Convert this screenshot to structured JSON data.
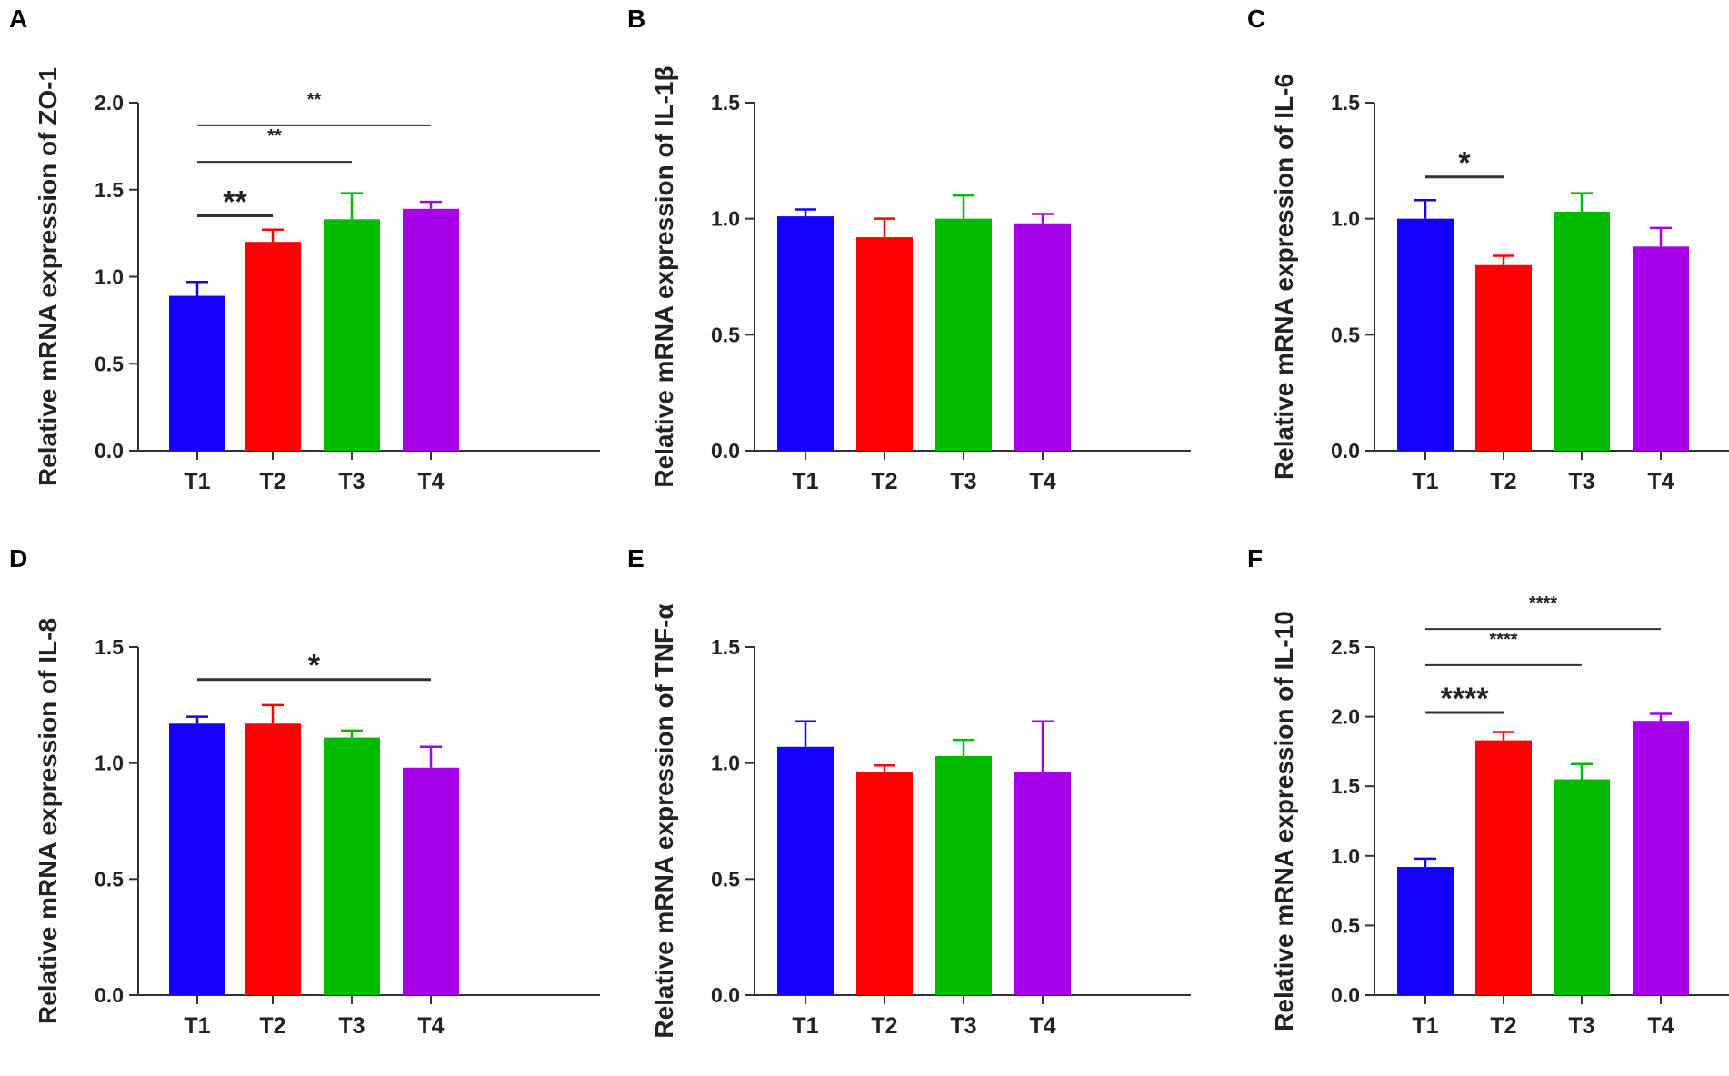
{
  "colors": {
    "T1": "#1400ff",
    "T2": "#ff0000",
    "T3": "#00bb00",
    "T4": "#a600e6",
    "axis": "#333333"
  },
  "chart_data": [
    {
      "panel": "A",
      "type": "bar",
      "ylabel": "Relative mRNA expression of ZO-1",
      "categories": [
        "T1",
        "T2",
        "T3",
        "T4"
      ],
      "values": [
        0.89,
        1.2,
        1.33,
        1.39
      ],
      "errors": [
        0.08,
        0.07,
        0.15,
        0.04
      ],
      "ylim": [
        0,
        2.0
      ],
      "yticks": [
        0.0,
        0.5,
        1.0,
        1.5,
        2.0
      ],
      "ytick_labels": [
        "0.0",
        "0.5",
        "1.0",
        "1.5",
        "2.0"
      ],
      "significance": [
        {
          "from": "T1",
          "to": "T2",
          "text": "**",
          "y": 1.35,
          "big": true
        },
        {
          "from": "T1",
          "to": "T3",
          "text": "**",
          "y": 1.66,
          "big": false
        },
        {
          "from": "T1",
          "to": "T4",
          "text": "**",
          "y": 1.87,
          "big": false
        }
      ]
    },
    {
      "panel": "B",
      "type": "bar",
      "ylabel": "Relative mRNA expression of IL-1β",
      "categories": [
        "T1",
        "T2",
        "T3",
        "T4"
      ],
      "values": [
        1.01,
        0.92,
        1.0,
        0.98
      ],
      "errors": [
        0.03,
        0.08,
        0.1,
        0.04
      ],
      "ylim": [
        0,
        1.5
      ],
      "yticks": [
        0.0,
        0.5,
        1.0,
        1.5
      ],
      "ytick_labels": [
        "0.0",
        "0.5",
        "1.0",
        "1.5"
      ],
      "significance": []
    },
    {
      "panel": "C",
      "type": "bar",
      "ylabel": "Relative mRNA expression of IL-6",
      "categories": [
        "T1",
        "T2",
        "T3",
        "T4"
      ],
      "values": [
        1.0,
        0.8,
        1.03,
        0.88
      ],
      "errors": [
        0.08,
        0.04,
        0.08,
        0.08
      ],
      "ylim": [
        0,
        1.5
      ],
      "yticks": [
        0.0,
        0.5,
        1.0,
        1.5
      ],
      "ytick_labels": [
        "0.0",
        "0.5",
        "1.0",
        "1.5"
      ],
      "significance": [
        {
          "from": "T1",
          "to": "T2",
          "text": "*",
          "y": 1.18,
          "big": true
        }
      ]
    },
    {
      "panel": "D",
      "type": "bar",
      "ylabel": "Relative mRNA expression of IL-8",
      "categories": [
        "T1",
        "T2",
        "T3",
        "T4"
      ],
      "values": [
        1.17,
        1.17,
        1.11,
        0.98
      ],
      "errors": [
        0.03,
        0.08,
        0.03,
        0.09
      ],
      "ylim": [
        0,
        1.5
      ],
      "yticks": [
        0.0,
        0.5,
        1.0,
        1.5
      ],
      "ytick_labels": [
        "0.0",
        "0.5",
        "1.0",
        "1.5"
      ],
      "significance": [
        {
          "from": "T1",
          "to": "T4",
          "text": "*",
          "y": 1.36,
          "big": true
        }
      ]
    },
    {
      "panel": "E",
      "type": "bar",
      "ylabel": "Relative mRNA expression of TNF-α",
      "categories": [
        "T1",
        "T2",
        "T3",
        "T4"
      ],
      "values": [
        1.07,
        0.96,
        1.03,
        0.96
      ],
      "errors": [
        0.11,
        0.03,
        0.07,
        0.22
      ],
      "ylim": [
        0,
        1.5
      ],
      "yticks": [
        0.0,
        0.5,
        1.0,
        1.5
      ],
      "ytick_labels": [
        "0.0",
        "0.5",
        "1.0",
        "1.5"
      ],
      "significance": []
    },
    {
      "panel": "F",
      "type": "bar",
      "ylabel": "Relative mRNA expression of IL-10",
      "categories": [
        "T1",
        "T2",
        "T3",
        "T4"
      ],
      "values": [
        0.92,
        1.83,
        1.55,
        1.97
      ],
      "errors": [
        0.06,
        0.06,
        0.11,
        0.05
      ],
      "ylim": [
        0,
        2.5
      ],
      "yticks": [
        0.0,
        0.5,
        1.0,
        1.5,
        2.0,
        2.5
      ],
      "ytick_labels": [
        "0.0",
        "0.5",
        "1.0",
        "1.5",
        "2.0",
        "2.5"
      ],
      "significance": [
        {
          "from": "T1",
          "to": "T2",
          "text": "****",
          "y": 2.03,
          "big": true
        },
        {
          "from": "T1",
          "to": "T3",
          "text": "****",
          "y": 2.37,
          "big": false
        },
        {
          "from": "T1",
          "to": "T4",
          "text": "****",
          "y": 2.63,
          "big": false
        }
      ]
    }
  ]
}
